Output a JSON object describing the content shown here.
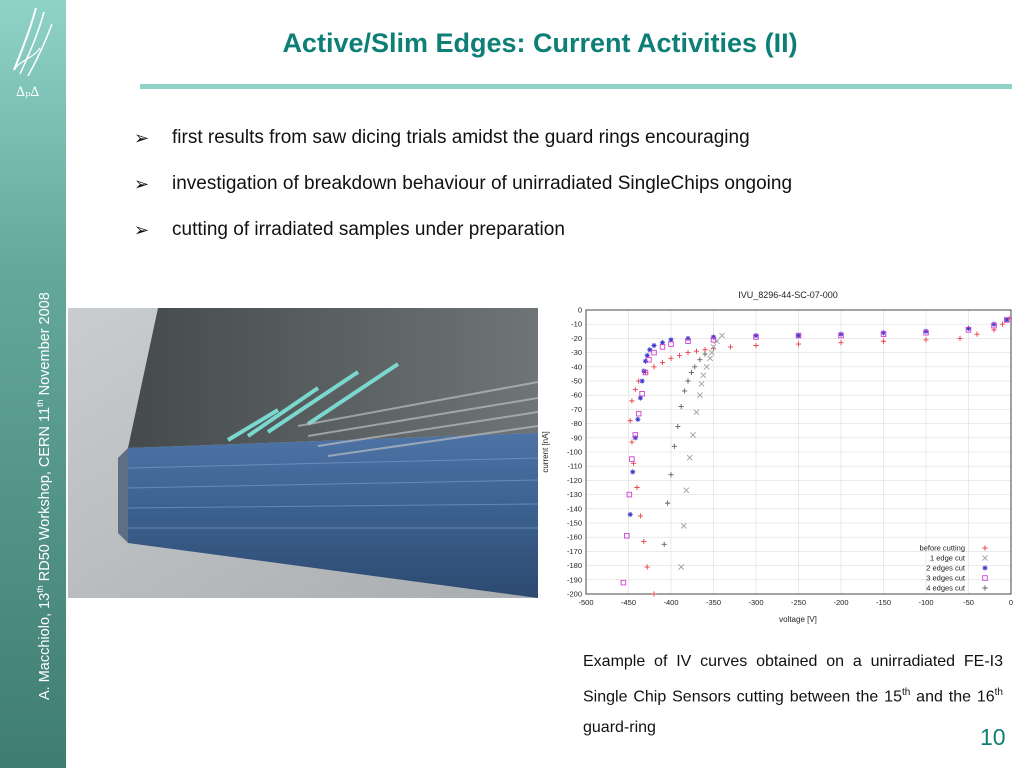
{
  "slide": {
    "title": "Active/Slim Edges: Current Activities (II)",
    "footer_vertical": {
      "author": "A. Macchiolo, 13",
      "sup1": "th",
      "event": " RD50 Workshop, CERN 11",
      "sup2": "th",
      "date": " November 2008"
    },
    "page_number": "10",
    "bullets": [
      "first results from saw dicing trials amidst the guard rings encouraging",
      "investigation of breakdown behaviour of unirradiated SingleChips ongoing",
      "cutting of irradiated samples under preparation"
    ],
    "caption": {
      "part1": "Example of IV curves obtained on a unirradiated FE-I3 Single Chip Sensors cutting between the 15",
      "sup1": "th",
      "part2": " and  the 16",
      "sup2": "th",
      "part3": " guard-ring"
    },
    "colors": {
      "accent": "#0d7f77",
      "sidebar": "#64a89c"
    }
  },
  "chart_data": {
    "type": "scatter",
    "title": "IVU_8296-44-SC-07-000",
    "xlabel": "voltage [V]",
    "ylabel": "current [nA]",
    "xlim": [
      -500,
      0
    ],
    "ylim": [
      -200,
      0
    ],
    "xticks": [
      -500,
      -450,
      -400,
      -350,
      -300,
      -250,
      -200,
      -150,
      -100,
      -50,
      0
    ],
    "yticks": [
      0,
      -10,
      -20,
      -30,
      -40,
      -50,
      -60,
      -70,
      -80,
      -90,
      -100,
      -110,
      -120,
      -130,
      -140,
      -150,
      -160,
      -170,
      -180,
      -190,
      -200
    ],
    "grid": true,
    "legend_position": "bottom-right",
    "series": [
      {
        "name": "before cutting",
        "marker": "+",
        "color": "#e8404a",
        "x": [
          -420,
          -428,
          -432,
          -436,
          -440,
          -444,
          -446,
          -448,
          -446,
          -442,
          -438,
          -430,
          -420,
          -410,
          -400,
          -390,
          -380,
          -370,
          -360,
          -350,
          -330,
          -300,
          -250,
          -200,
          -150,
          -100,
          -60,
          -40,
          -20,
          -10,
          -2
        ],
        "y": [
          -200,
          -181,
          -163,
          -145,
          -125,
          -108,
          -93,
          -78,
          -64,
          -56,
          -50,
          -44,
          -40,
          -37,
          -34,
          -32,
          -30,
          -29,
          -28,
          -27,
          -26,
          -25,
          -24,
          -23,
          -22,
          -21,
          -20,
          -17,
          -14,
          -10,
          -6
        ]
      },
      {
        "name": "1 edge cut",
        "marker": "x",
        "color": "#9aa0a8",
        "x": [
          -388,
          -385,
          -382,
          -378,
          -374,
          -370,
          -366,
          -364,
          -362,
          -358,
          -354,
          -352,
          -350,
          -346,
          -340
        ],
        "y": [
          -181,
          -152,
          -127,
          -104,
          -88,
          -72,
          -60,
          -52,
          -46,
          -40,
          -34,
          -30,
          -26,
          -22,
          -18
        ]
      },
      {
        "name": "2 edges cut",
        "marker": "*",
        "color": "#3a3acc",
        "x": [
          -448,
          -445,
          -442,
          -439,
          -436,
          -434,
          -432,
          -430,
          -428,
          -425,
          -420,
          -410,
          -400,
          -380,
          -350,
          -300,
          -250,
          -200,
          -150,
          -100,
          -50,
          -20,
          -5
        ],
        "y": [
          -144,
          -114,
          -90,
          -77,
          -62,
          -50,
          -43,
          -36,
          -32,
          -28,
          -25,
          -23,
          -21,
          -20,
          -19,
          -18,
          -18,
          -17,
          -16,
          -15,
          -13,
          -10,
          -7
        ]
      },
      {
        "name": "3 edges cut",
        "marker": "square",
        "color": "#d040d0",
        "x": [
          -456,
          -452,
          -449,
          -446,
          -442,
          -438,
          -434,
          -430,
          -426,
          -420,
          -410,
          -400,
          -380,
          -350,
          -300,
          -250,
          -200,
          -150,
          -100,
          -50,
          -20,
          -5
        ],
        "y": [
          -192,
          -159,
          -130,
          -105,
          -88,
          -73,
          -59,
          -44,
          -35,
          -30,
          -26,
          -24,
          -22,
          -21,
          -19,
          -18,
          -18,
          -17,
          -16,
          -14,
          -11,
          -7
        ]
      },
      {
        "name": "4 edges cut",
        "marker": "+",
        "color": "#606060",
        "x": [
          -408,
          -404,
          -400,
          -396,
          -392,
          -388,
          -384,
          -380,
          -376,
          -372,
          -366,
          -360
        ],
        "y": [
          -165,
          -136,
          -116,
          -96,
          -82,
          -68,
          -57,
          -50,
          -44,
          -40,
          -35,
          -31
        ]
      }
    ]
  }
}
